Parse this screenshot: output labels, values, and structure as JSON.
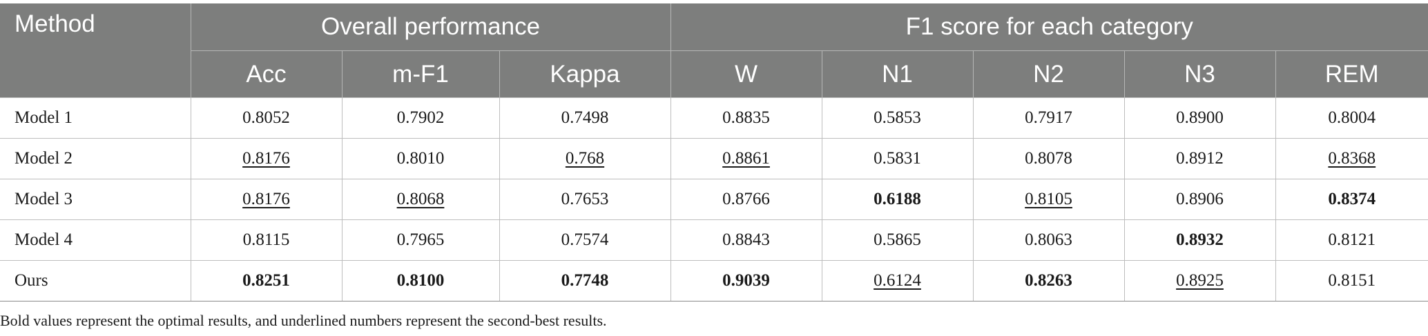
{
  "table": {
    "header": {
      "method": "Method",
      "group_overall": "Overall performance",
      "group_f1": "F1 score for each category",
      "columns": [
        "Acc",
        "m-F1",
        "Kappa",
        "W",
        "N1",
        "N2",
        "N3",
        "REM"
      ]
    },
    "rows": [
      {
        "method": "Model 1",
        "cells": [
          {
            "value": "0.8052",
            "style": "normal"
          },
          {
            "value": "0.7902",
            "style": "normal"
          },
          {
            "value": "0.7498",
            "style": "normal"
          },
          {
            "value": "0.8835",
            "style": "normal"
          },
          {
            "value": "0.5853",
            "style": "normal"
          },
          {
            "value": "0.7917",
            "style": "normal"
          },
          {
            "value": "0.8900",
            "style": "normal"
          },
          {
            "value": "0.8004",
            "style": "normal"
          }
        ]
      },
      {
        "method": "Model 2",
        "cells": [
          {
            "value": "0.8176",
            "style": "second"
          },
          {
            "value": "0.8010",
            "style": "normal"
          },
          {
            "value": "0.768",
            "style": "second"
          },
          {
            "value": "0.8861",
            "style": "second"
          },
          {
            "value": "0.5831",
            "style": "normal"
          },
          {
            "value": "0.8078",
            "style": "normal"
          },
          {
            "value": "0.8912",
            "style": "normal"
          },
          {
            "value": "0.8368",
            "style": "second"
          }
        ]
      },
      {
        "method": "Model 3",
        "cells": [
          {
            "value": "0.8176",
            "style": "second"
          },
          {
            "value": "0.8068",
            "style": "second"
          },
          {
            "value": "0.7653",
            "style": "normal"
          },
          {
            "value": "0.8766",
            "style": "normal"
          },
          {
            "value": "0.6188",
            "style": "best"
          },
          {
            "value": "0.8105",
            "style": "second"
          },
          {
            "value": "0.8906",
            "style": "normal"
          },
          {
            "value": "0.8374",
            "style": "best"
          }
        ]
      },
      {
        "method": "Model 4",
        "cells": [
          {
            "value": "0.8115",
            "style": "normal"
          },
          {
            "value": "0.7965",
            "style": "normal"
          },
          {
            "value": "0.7574",
            "style": "normal"
          },
          {
            "value": "0.8843",
            "style": "normal"
          },
          {
            "value": "0.5865",
            "style": "normal"
          },
          {
            "value": "0.8063",
            "style": "normal"
          },
          {
            "value": "0.8932",
            "style": "best"
          },
          {
            "value": "0.8121",
            "style": "normal"
          }
        ]
      },
      {
        "method": "Ours",
        "cells": [
          {
            "value": "0.8251",
            "style": "best"
          },
          {
            "value": "0.8100",
            "style": "best"
          },
          {
            "value": "0.7748",
            "style": "best"
          },
          {
            "value": "0.9039",
            "style": "best"
          },
          {
            "value": "0.6124",
            "style": "second"
          },
          {
            "value": "0.8263",
            "style": "best"
          },
          {
            "value": "0.8925",
            "style": "second"
          },
          {
            "value": "0.8151",
            "style": "normal"
          }
        ]
      }
    ]
  },
  "footnote": "Bold values represent the optimal results, and underlined numbers represent the second-best results."
}
